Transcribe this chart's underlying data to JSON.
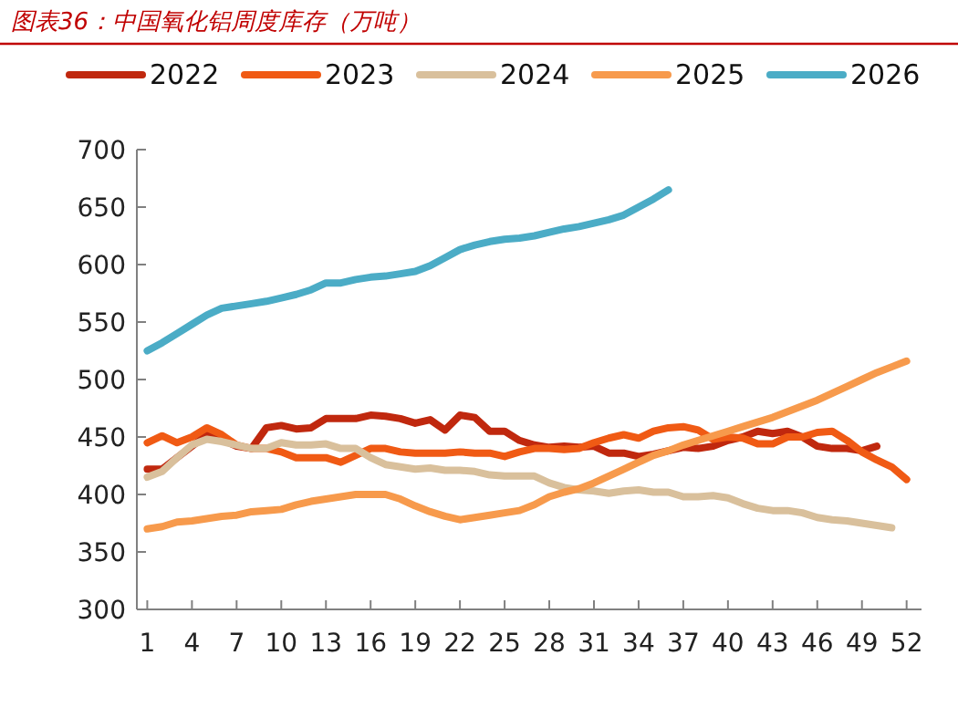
{
  "chart_data": {
    "type": "line",
    "title": "图表36：中国氧化铝周度库存（万吨）",
    "xlim": [
      0.3,
      53
    ],
    "xticks": [
      1,
      4,
      7,
      10,
      13,
      16,
      19,
      22,
      25,
      28,
      31,
      34,
      37,
      40,
      43,
      46,
      49,
      52
    ],
    "ylim": [
      300,
      700
    ],
    "yticks": [
      300,
      350,
      400,
      450,
      500,
      550,
      600,
      650,
      700
    ],
    "grid": false,
    "legend": "top",
    "marker": "none",
    "line_style": "solid",
    "series": [
      {
        "name": "2022",
        "color": "#c0280e",
        "x": [
          1,
          2,
          3,
          4,
          5,
          6,
          7,
          8,
          9,
          10,
          11,
          12,
          13,
          14,
          15,
          16,
          17,
          18,
          19,
          20,
          21,
          22,
          23,
          24,
          25,
          26,
          27,
          28,
          29,
          30,
          31,
          32,
          33,
          34,
          35,
          36,
          37,
          38,
          39,
          40,
          41,
          42,
          43,
          44,
          45,
          46,
          47,
          48,
          49,
          50
        ],
        "values": [
          422,
          422,
          432,
          442,
          452,
          448,
          442,
          440,
          458,
          460,
          457,
          458,
          466,
          466,
          466,
          469,
          468,
          466,
          462,
          465,
          456,
          469,
          467,
          455,
          455,
          447,
          443,
          441,
          442,
          441,
          442,
          436,
          436,
          433,
          435,
          438,
          441,
          440,
          442,
          447,
          450,
          455,
          453,
          455,
          450,
          442,
          440,
          440,
          438,
          442
        ]
      },
      {
        "name": "2023",
        "color": "#f05a14",
        "x": [
          1,
          2,
          3,
          4,
          5,
          6,
          7,
          8,
          9,
          10,
          11,
          12,
          13,
          14,
          15,
          16,
          17,
          18,
          19,
          20,
          21,
          22,
          23,
          24,
          25,
          26,
          27,
          28,
          29,
          30,
          31,
          32,
          33,
          34,
          35,
          36,
          37,
          38,
          39,
          40,
          41,
          42,
          43,
          44,
          45,
          46,
          47,
          48,
          49,
          50,
          51,
          52
        ],
        "values": [
          445,
          451,
          445,
          450,
          458,
          452,
          443,
          440,
          440,
          437,
          432,
          432,
          432,
          428,
          434,
          440,
          440,
          437,
          436,
          436,
          436,
          437,
          436,
          436,
          433,
          437,
          440,
          440,
          439,
          440,
          445,
          449,
          452,
          449,
          455,
          458,
          459,
          456,
          448,
          450,
          449,
          444,
          444,
          450,
          450,
          454,
          455,
          447,
          437,
          430,
          424,
          413
        ]
      },
      {
        "name": "2024",
        "color": "#d9c09c",
        "x": [
          1,
          2,
          3,
          4,
          5,
          6,
          7,
          8,
          9,
          10,
          11,
          12,
          13,
          14,
          15,
          16,
          17,
          18,
          19,
          20,
          21,
          22,
          23,
          24,
          25,
          26,
          27,
          28,
          29,
          30,
          31,
          32,
          33,
          34,
          35,
          36,
          37,
          38,
          39,
          40,
          41,
          42,
          43,
          44,
          45,
          46,
          47,
          48,
          49,
          50,
          51
        ],
        "values": [
          415,
          420,
          432,
          443,
          448,
          446,
          443,
          440,
          440,
          445,
          443,
          443,
          444,
          440,
          440,
          432,
          426,
          424,
          422,
          423,
          421,
          421,
          420,
          417,
          416,
          416,
          416,
          410,
          406,
          404,
          403,
          401,
          403,
          404,
          402,
          402,
          398,
          398,
          399,
          397,
          392,
          388,
          386,
          386,
          384,
          380,
          378,
          377,
          375,
          373,
          371
        ]
      },
      {
        "name": "2025",
        "color": "#f79a4c",
        "x": [
          1,
          2,
          3,
          4,
          5,
          6,
          7,
          8,
          9,
          10,
          11,
          12,
          13,
          14,
          15,
          16,
          17,
          18,
          19,
          20,
          21,
          22,
          23,
          24,
          25,
          26,
          27,
          28,
          29,
          30,
          31,
          32,
          33,
          34,
          35,
          36,
          37,
          38,
          39,
          40,
          41,
          42,
          43,
          44,
          45,
          46,
          47,
          48,
          49,
          50,
          51,
          52
        ],
        "values": [
          370,
          372,
          376,
          377,
          379,
          381,
          382,
          385,
          386,
          387,
          391,
          394,
          396,
          398,
          400,
          400,
          400,
          396,
          390,
          385,
          381,
          378,
          380,
          382,
          384,
          386,
          391,
          398,
          402,
          405,
          410,
          416,
          422,
          428,
          434,
          438,
          443,
          447,
          451,
          455,
          459,
          463,
          467,
          472,
          477,
          482,
          488,
          494,
          500,
          506,
          511,
          516
        ]
      },
      {
        "name": "2026",
        "color": "#4bacc6",
        "x": [
          1,
          2,
          3,
          4,
          5,
          6,
          7,
          8,
          9,
          10,
          11,
          12,
          13,
          14,
          15,
          16,
          17,
          18,
          19,
          20,
          21,
          22,
          23,
          24,
          25,
          26,
          27,
          28,
          29,
          30,
          31,
          32,
          33,
          34,
          35,
          36
        ],
        "values": [
          525,
          532,
          540,
          548,
          556,
          562,
          564,
          566,
          568,
          571,
          574,
          578,
          584,
          584,
          587,
          589,
          590,
          592,
          594,
          599,
          606,
          613,
          617,
          620,
          622,
          623,
          625,
          628,
          631,
          633,
          636,
          639,
          643,
          650,
          657,
          665
        ]
      }
    ]
  }
}
